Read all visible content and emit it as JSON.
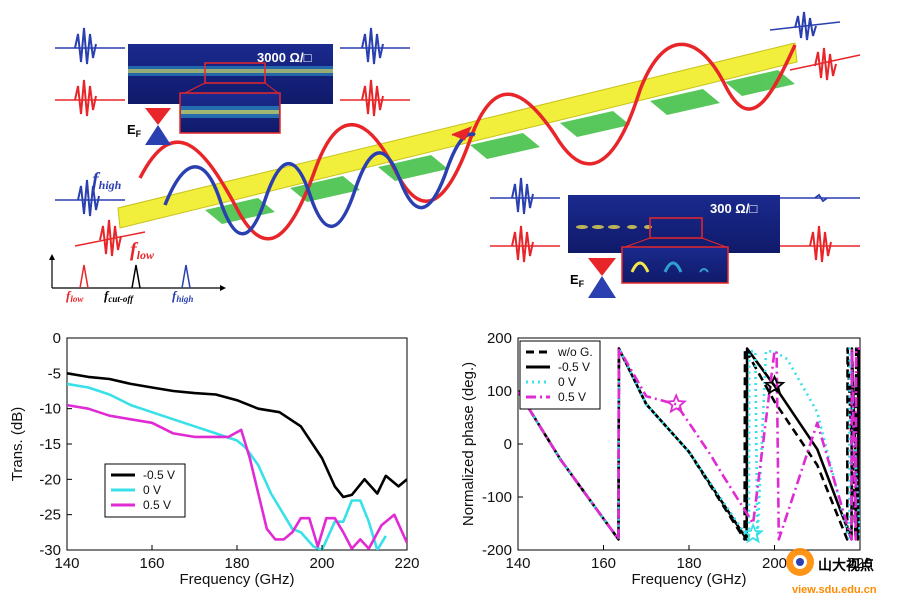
{
  "illustration": {
    "resistance_high": "3000 Ω/□",
    "resistance_low": "300 Ω/□",
    "fermi_label": "E",
    "fermi_sub": "F",
    "f_high": "f",
    "f_high_sub": "high",
    "f_low": "f",
    "f_low_sub": "low",
    "f_cutoff": "f",
    "f_cutoff_sub": "cut-off",
    "colors": {
      "high": "#2a3fb0",
      "low": "#e8262a",
      "strip": "#f2ee3c",
      "pads": "#47c24a",
      "map": "#16217a"
    }
  },
  "watermark": {
    "text": "山大视点",
    "url": "view.sdu.edu.cn"
  },
  "chart_data": [
    {
      "type": "line",
      "title": "",
      "xlabel": "Frequency (GHz)",
      "ylabel": "Trans. (dB)",
      "xlim": [
        140,
        220
      ],
      "ylim": [
        -30,
        0
      ],
      "xticks": [
        140,
        160,
        180,
        200,
        220
      ],
      "yticks": [
        0,
        -5,
        -10,
        -15,
        -20,
        -25,
        -30
      ],
      "legend_position": "bottom-left",
      "series": [
        {
          "name": "-0.5 V",
          "color": "#000000",
          "dash": "solid",
          "x": [
            140,
            145,
            150,
            155,
            160,
            165,
            170,
            175,
            180,
            185,
            190,
            195,
            200,
            203,
            205,
            207,
            210,
            213,
            215,
            218,
            220
          ],
          "y": [
            -5,
            -5.5,
            -5.8,
            -6.5,
            -7,
            -7.5,
            -7.8,
            -8,
            -8.8,
            -10,
            -10.5,
            -12.5,
            -17,
            -21,
            -22.5,
            -22.2,
            -20,
            -22,
            -19.5,
            -21,
            -20
          ]
        },
        {
          "name": "0 V",
          "color": "#38e1e8",
          "dash": "solid",
          "x": [
            140,
            145,
            150,
            155,
            160,
            165,
            170,
            175,
            180,
            182,
            185,
            188,
            190,
            193,
            195,
            198,
            200,
            203,
            205,
            207,
            209,
            211,
            213,
            215
          ],
          "y": [
            -6.5,
            -7,
            -8,
            -9.5,
            -10.5,
            -11.5,
            -12.5,
            -13.5,
            -14.5,
            -15.5,
            -18,
            -22,
            -24,
            -27,
            -27.5,
            -29.5,
            -30,
            -26,
            -26,
            -23,
            -23,
            -26,
            -30,
            -28
          ]
        },
        {
          "name": "0.5 V",
          "color": "#e02bd3",
          "dash": "solid",
          "x": [
            140,
            145,
            150,
            155,
            160,
            165,
            170,
            175,
            178,
            181,
            183,
            185,
            187,
            189,
            191,
            193,
            195,
            197,
            199,
            201,
            203,
            205,
            207,
            209,
            211,
            214,
            217,
            220
          ],
          "y": [
            -9.5,
            -10,
            -11,
            -11.5,
            -12,
            -13.5,
            -14,
            -14,
            -14,
            -13,
            -17,
            -22,
            -27,
            -28.5,
            -28.5,
            -27.5,
            -25.5,
            -25.5,
            -29.5,
            -25.5,
            -25.5,
            -27.5,
            -29.8,
            -28.5,
            -29.8,
            -26.5,
            -25,
            -29
          ]
        }
      ]
    },
    {
      "type": "line",
      "title": "",
      "xlabel": "Frequency (GHz)",
      "ylabel": "Normalized phase (deg.)",
      "xlim": [
        140,
        220
      ],
      "ylim": [
        -200,
        200
      ],
      "xticks": [
        140,
        160,
        180,
        200,
        220
      ],
      "yticks": [
        200,
        100,
        0,
        -100,
        -200
      ],
      "legend_position": "top-left",
      "series": [
        {
          "name": "w/o G.",
          "color": "#000000",
          "dash": "dashed",
          "x": [
            140,
            150,
            163.5,
            163.6,
            170,
            180,
            193,
            193.1,
            200,
            210,
            217,
            217.1,
            219,
            219.1,
            220
          ],
          "y": [
            100,
            -30,
            -180,
            180,
            75,
            -15,
            -180,
            180,
            80,
            -40,
            -180,
            180,
            -180,
            180,
            180
          ]
        },
        {
          "name": "-0.5 V",
          "color": "#000000",
          "dash": "solid",
          "x": [
            140,
            150,
            163.5,
            163.6,
            170,
            180,
            193.5,
            193.6,
            200,
            210,
            218,
            218.1,
            219.5,
            219.6,
            220
          ],
          "y": [
            100,
            -30,
            -180,
            180,
            75,
            -15,
            -180,
            180,
            110,
            -10,
            -180,
            180,
            -180,
            180,
            180
          ]
        },
        {
          "name": "0 V",
          "color": "#38e1e8",
          "dash": "dotted",
          "x": [
            140,
            150,
            163.5,
            163.6,
            170,
            180,
            194,
            194.1,
            195.5,
            196,
            198,
            200,
            203,
            210,
            217.5,
            217.6,
            220
          ],
          "y": [
            100,
            -30,
            -180,
            180,
            75,
            -15,
            -180,
            175,
            175,
            -180,
            175,
            175,
            160,
            60,
            -180,
            180,
            -180
          ]
        },
        {
          "name": "0.5 V",
          "color": "#e02bd3",
          "dash": "dashdot",
          "x": [
            140,
            150,
            163.5,
            163.6,
            170,
            177,
            180,
            185,
            188,
            195,
            200,
            200.5,
            201,
            210,
            218,
            218.1,
            219,
            219.1,
            220
          ],
          "y": [
            100,
            -30,
            -180,
            180,
            90,
            75,
            40,
            -20,
            -60,
            -150,
            175,
            175,
            -180,
            40,
            -180,
            180,
            -180,
            180,
            180
          ]
        }
      ],
      "annotations": [
        {
          "marker": "star-open",
          "color": "#e02bd3",
          "x": 177,
          "y": 75
        },
        {
          "marker": "star-open",
          "color": "#38e1e8",
          "x": 195,
          "y": -170
        },
        {
          "marker": "star-open",
          "color": "#000000",
          "x": 200,
          "y": 110
        }
      ]
    }
  ]
}
